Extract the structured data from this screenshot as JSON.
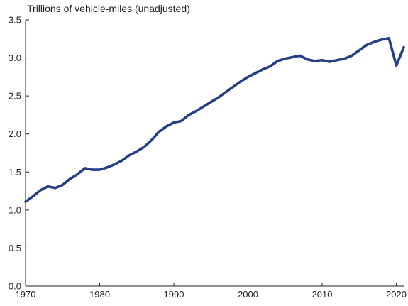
{
  "chart_data": {
    "type": "line",
    "title": "",
    "ylabel": "Trillions of vehicle-miles (unadjusted)",
    "xlabel": "",
    "xlim": [
      1970,
      2021
    ],
    "ylim": [
      0.0,
      3.5
    ],
    "grid": false,
    "legend": "none",
    "x_ticks": [
      1970,
      1980,
      1990,
      2000,
      2010,
      2020
    ],
    "y_ticks": [
      "0.0",
      "0.5",
      "1.0",
      "1.5",
      "2.0",
      "2.5",
      "3.0",
      "3.5"
    ],
    "colors": {
      "line": "#253f86",
      "axis": "#231f20",
      "text": "#231f20"
    },
    "series": [
      {
        "name": "",
        "x": [
          1970,
          1971,
          1972,
          1973,
          1974,
          1975,
          1976,
          1977,
          1978,
          1979,
          1980,
          1981,
          1982,
          1983,
          1984,
          1985,
          1986,
          1987,
          1988,
          1989,
          1990,
          1991,
          1992,
          1993,
          1994,
          1995,
          1996,
          1997,
          1998,
          1999,
          2000,
          2001,
          2002,
          2003,
          2004,
          2005,
          2006,
          2007,
          2008,
          2009,
          2010,
          2011,
          2012,
          2013,
          2014,
          2015,
          2016,
          2017,
          2018,
          2019,
          2020,
          2021
        ],
        "y": [
          1.11,
          1.18,
          1.26,
          1.31,
          1.29,
          1.33,
          1.41,
          1.47,
          1.55,
          1.53,
          1.53,
          1.56,
          1.6,
          1.65,
          1.72,
          1.77,
          1.83,
          1.92,
          2.03,
          2.1,
          2.15,
          2.17,
          2.25,
          2.3,
          2.36,
          2.42,
          2.48,
          2.55,
          2.62,
          2.69,
          2.75,
          2.8,
          2.85,
          2.89,
          2.96,
          2.99,
          3.01,
          3.03,
          2.98,
          2.96,
          2.97,
          2.95,
          2.97,
          2.99,
          3.03,
          3.1,
          3.17,
          3.21,
          3.24,
          3.26,
          2.9,
          3.14
        ]
      }
    ]
  }
}
